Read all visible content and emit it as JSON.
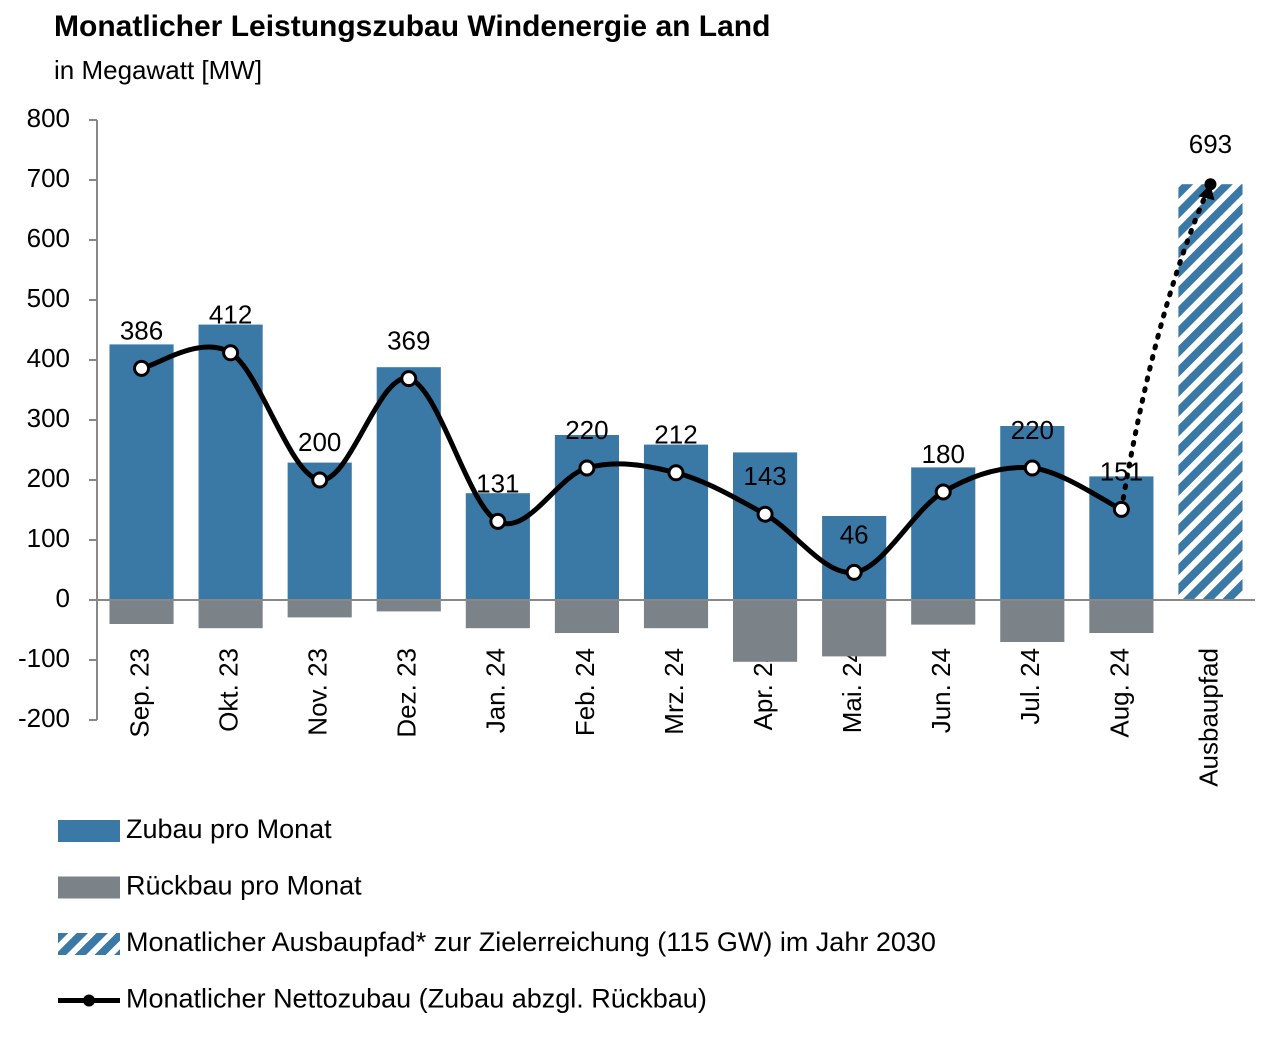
{
  "chart_data": {
    "type": "bar",
    "title": "Monatlicher Leistungszubau Windenergie an Land",
    "subtitle": "in Megawatt [MW]",
    "categories": [
      "Sep. 23",
      "Okt. 23",
      "Nov. 23",
      "Dez. 23",
      "Jan. 24",
      "Feb. 24",
      "Mrz. 24",
      "Apr. 24",
      "Mai. 24",
      "Jun. 24",
      "Jul. 24",
      "Aug. 24",
      "Ausbaupfad"
    ],
    "series": [
      {
        "name": "Zubau pro Monat",
        "type": "bar",
        "color": "#3a78a6",
        "values": [
          426,
          459,
          229,
          388,
          178,
          275,
          259,
          246,
          140,
          221,
          290,
          206,
          null
        ]
      },
      {
        "name": "Rückbau pro Monat",
        "type": "bar",
        "color": "#7b8389",
        "values": [
          -40,
          -47,
          -29,
          -19,
          -47,
          -55,
          -47,
          -103,
          -94,
          -41,
          -70,
          -55,
          null
        ]
      },
      {
        "name": "Monatlicher Ausbaupfad* zur Zielerreichung (115 GW) im Jahr 2030",
        "type": "bar",
        "color": "#3a78a6",
        "pattern": "hatch",
        "values": [
          null,
          null,
          null,
          null,
          null,
          null,
          null,
          null,
          null,
          null,
          null,
          null,
          693
        ]
      },
      {
        "name": "Monatlicher Nettozubau (Zubau abzgl. Rückbau)",
        "type": "line",
        "color": "#000000",
        "marker": "circle",
        "values": [
          386,
          412,
          200,
          369,
          131,
          220,
          212,
          143,
          46,
          180,
          220,
          151,
          null
        ]
      }
    ],
    "ylim": [
      -200,
      800
    ],
    "yticks": [
      -200,
      -100,
      0,
      100,
      200,
      300,
      400,
      500,
      600,
      700,
      800
    ],
    "grid": false
  }
}
